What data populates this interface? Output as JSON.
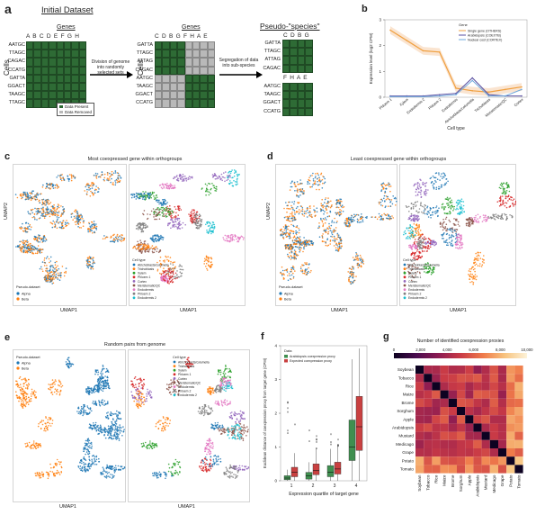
{
  "panels": {
    "a": {
      "label": "a",
      "title": "Initial Dataset",
      "genes_label": "Genes",
      "cells_label": "Cells",
      "gene_cols": "A B C D E F G H",
      "cell_rows": [
        "AATGC",
        "TTAGC",
        "CAGAC",
        "CCATG",
        "GATTA",
        "GGACT",
        "TAAGC",
        "TTAGC"
      ],
      "legend_present": "Data Present",
      "legend_removed": "Data Removed",
      "step1": "Division of genome into randomly selected sets",
      "mid_genes_label": "Genes",
      "mid_cols": "C D B G F H A E",
      "mid_rows": [
        "GATTA",
        "TTAGC",
        "ATTAG",
        "CAGAC",
        "AATGC",
        "TAAGC",
        "GGACT",
        "CCATG"
      ],
      "step2": "Segregation of data into sub-species",
      "pseudo_title": "Pseudo-\"species\"",
      "ps1_cols": "C D B G",
      "ps1_rows": [
        "GATTA",
        "TTAGC",
        "ATTAG",
        "CAGAC"
      ],
      "ps2_cols": "F H A E",
      "ps2_rows": [
        "AATGC",
        "TAAGC",
        "GGACT",
        "CCATG"
      ]
    },
    "b": {
      "label": "b",
      "legend_title": "Gene",
      "legend": [
        "Single gene (OTHERS)",
        "Arabidopsis (COEXTB)",
        "Nuclear cost (CORTEX)"
      ],
      "ylabel": "Expression level (log2 CPM)",
      "xlabel": "Cell type",
      "colors": [
        "#f0a040",
        "#5a4fa0",
        "#6fa8dc"
      ]
    },
    "c": {
      "label": "c",
      "title": "Most coexpressed gene within orthogroups",
      "umap2": "UMAP2",
      "umap1a": "UMAP1",
      "umap1b": "UMAP1",
      "legend_title": "Pseudo-dataset",
      "alpha": "Alpha",
      "beta": "Beta",
      "celltype_title": "Cell type"
    },
    "d": {
      "label": "d",
      "title": "Least coexpressed gene within orthogroups",
      "umap2": "UMAP2",
      "umap1a": "UMAP1",
      "umap1b": "UMAP1",
      "legend_title": "Pseudo-dataset",
      "alpha": "Alpha",
      "beta": "Beta",
      "celltype_title": "Cell type"
    },
    "e": {
      "label": "e",
      "title": "Random pairs from genome",
      "umap1a": "UMAP1",
      "umap1b": "UMAP1",
      "legend_title": "Pseudo-dataset",
      "alpha": "Alpha",
      "beta": "Beta",
      "celltype_title": "Cell type"
    },
    "f": {
      "label": "f",
      "legend_title": "Data",
      "legend": [
        "Arabidopsis coexpression proxy",
        "Expected coexpression proxy"
      ],
      "ylabel": "Euclidean distance of coexpression proxy from target gene (CPM)",
      "xlabel": "Expression quartile of target gene",
      "colors": [
        "#3f8f4f",
        "#c94040"
      ]
    },
    "g": {
      "label": "g",
      "colorbar_title": "Number of identified coexpression proxies",
      "colorbar_ticks": [
        "0",
        "2,000",
        "4,000",
        "6,000",
        "8,000",
        "10,000"
      ],
      "species": [
        "Soybean",
        "Tobacco",
        "Rice",
        "Maize",
        "Brome",
        "Sorghum",
        "Apple",
        "Arabidopsis",
        "Mustard",
        "Medicago",
        "Grape",
        "Potato",
        "Tomato"
      ]
    }
  },
  "celltypes": [
    "Atrichoblasts/columella",
    "Trichoblasts",
    "Xylem",
    "Phloem 1",
    "Cortex",
    "Meristematic/QC",
    "Endodermis",
    "Phloem 2",
    "Endodermis 2"
  ],
  "celltype_colors": [
    "#1f77b4",
    "#ff7f0e",
    "#2ca02c",
    "#d62728",
    "#9467bd",
    "#8c564b",
    "#e377c2",
    "#7f7f7f",
    "#17becf"
  ],
  "pseudo_colors": {
    "alpha": "#1f77b4",
    "beta": "#ff7f0e"
  },
  "chart_data": [
    {
      "type": "line",
      "title": "",
      "xlabel": "Cell type",
      "ylabel": "Expression level (log2 CPM)",
      "categories": [
        "Phloem 1",
        "Xylem",
        "Endodermis 2",
        "Phloem 2",
        "Endodermis",
        "Atrichoblasts/columella",
        "Trichoblasts",
        "Meristematic/QC",
        "Cortex"
      ],
      "ylim": [
        0,
        3
      ],
      "series": [
        {
          "name": "Single gene (OTHERS)",
          "values": [
            2.6,
            2.2,
            1.8,
            1.75,
            0.35,
            0.25,
            0.2,
            0.3,
            0.4
          ]
        },
        {
          "name": "Arabidopsis (COEXTB)",
          "values": [
            0.05,
            0.05,
            0.05,
            0.1,
            0.15,
            0.75,
            0.1,
            0.05,
            0.05
          ]
        },
        {
          "name": "Nuclear cost (CORTEX)",
          "values": [
            0.02,
            0.02,
            0.02,
            0.05,
            0.1,
            0.65,
            0.05,
            0.05,
            0.3
          ]
        }
      ]
    },
    {
      "type": "bar",
      "title": "",
      "xlabel": "Expression quartile of target gene",
      "ylabel": "Euclidean distance of coexpression proxy from target gene (CPM)",
      "categories": [
        "1",
        "2",
        "3",
        "4"
      ],
      "ylim": [
        0,
        4
      ],
      "series": [
        {
          "name": "Arabidopsis coexpression proxy",
          "medians": [
            0.08,
            0.15,
            0.25,
            1.0
          ],
          "q1": [
            0.03,
            0.05,
            0.12,
            0.6
          ],
          "q3": [
            0.15,
            0.25,
            0.45,
            1.8
          ]
        },
        {
          "name": "Expected coexpression proxy",
          "medians": [
            0.25,
            0.3,
            0.35,
            1.6
          ],
          "q1": [
            0.12,
            0.18,
            0.2,
            0.9
          ],
          "q3": [
            0.4,
            0.5,
            0.55,
            2.5
          ]
        }
      ]
    },
    {
      "type": "heatmap",
      "title": "",
      "colorbar_title": "Number of identified coexpression proxies",
      "rows": [
        "Soybean",
        "Tobacco",
        "Rice",
        "Maize",
        "Brome",
        "Sorghum",
        "Apple",
        "Arabidopsis",
        "Mustard",
        "Medicago",
        "Grape",
        "Potato",
        "Tomato"
      ],
      "cols": [
        "Soybean",
        "Tobacco",
        "Rice",
        "Maize",
        "Brome",
        "Sorghum",
        "Apple",
        "Arabidopsis",
        "Mustard",
        "Medicago",
        "Grape",
        "Potato",
        "Tomato"
      ],
      "range": [
        0,
        10000
      ]
    }
  ]
}
